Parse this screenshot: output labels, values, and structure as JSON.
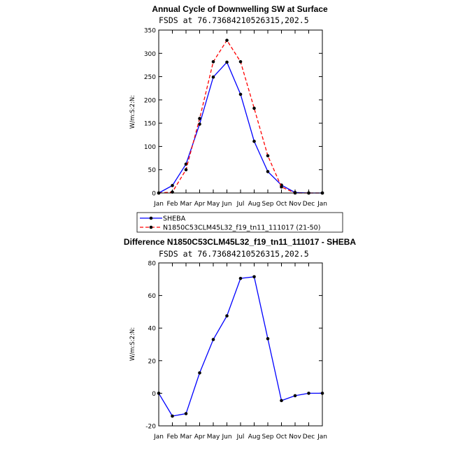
{
  "chart_data": [
    {
      "type": "line",
      "title": "Annual Cycle of Downwelling SW at Surface",
      "subtitle": "FSDS at 76.73684210526315,202.5",
      "xlabel": "",
      "ylabel": "W/m:S:2:N:",
      "categories": [
        "Jan",
        "Feb",
        "Mar",
        "Apr",
        "May",
        "Jun",
        "Jul",
        "Aug",
        "Sep",
        "Oct",
        "Nov",
        "Dec",
        "Jan"
      ],
      "ylim": [
        0,
        350
      ],
      "yticks": [
        0,
        50,
        100,
        150,
        200,
        250,
        300,
        350
      ],
      "series": [
        {
          "name": "SHEBA",
          "color": "#0000ff",
          "dash": "solid",
          "values": [
            0,
            16,
            62,
            148,
            249,
            281,
            212,
            111,
            46,
            17,
            1,
            0,
            0
          ]
        },
        {
          "name": "N1850C53CLM45L32_f19_tn11_111017 (21-50)",
          "color": "#ff0000",
          "dash": "dashed",
          "values": [
            0,
            2,
            50,
            160,
            282,
            328,
            282,
            182,
            80,
            13,
            0,
            0,
            0
          ]
        }
      ],
      "legend": "below"
    },
    {
      "type": "line",
      "title": "Difference N1850C53CLM45L32_f19_tn11_111017 - SHEBA",
      "subtitle": "FSDS at 76.73684210526315,202.5",
      "xlabel": "",
      "ylabel": "W/m:S:2:N:",
      "categories": [
        "Jan",
        "Feb",
        "Mar",
        "Apr",
        "May",
        "Jun",
        "Jul",
        "Aug",
        "Sep",
        "Oct",
        "Nov",
        "Dec",
        "Jan"
      ],
      "ylim": [
        -20,
        80
      ],
      "yticks": [
        -20,
        0,
        20,
        40,
        60,
        80
      ],
      "series": [
        {
          "color": "#0000ff",
          "dash": "solid",
          "values": [
            0,
            -14,
            -12.5,
            12.5,
            33,
            47.5,
            70.5,
            71.5,
            33.5,
            -4.5,
            -1.5,
            0,
            0
          ]
        }
      ]
    }
  ]
}
